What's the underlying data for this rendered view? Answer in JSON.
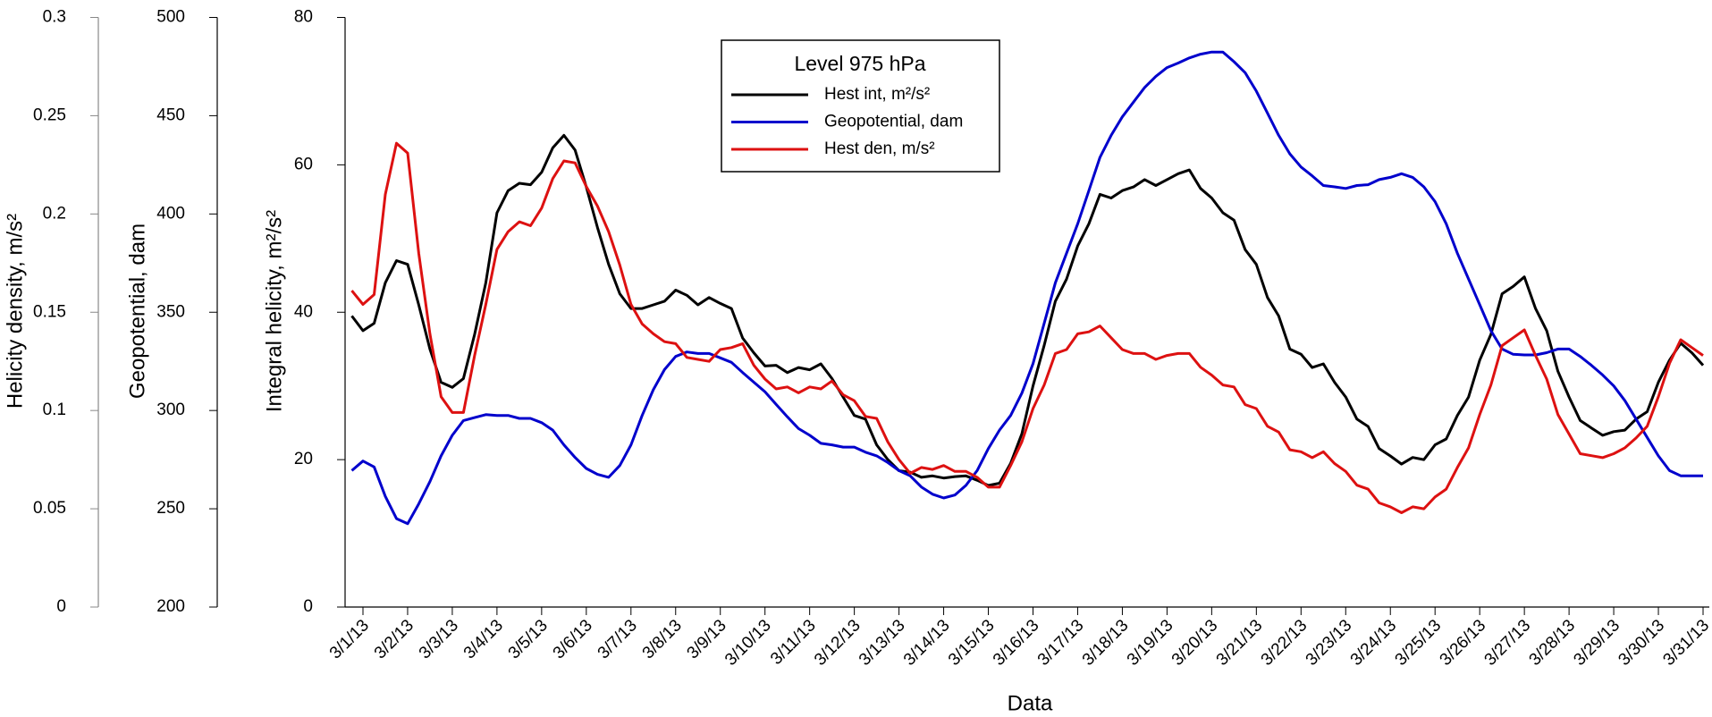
{
  "chart_data": {
    "type": "line",
    "legend_title": "Level 975 hPa",
    "xlabel": "Data",
    "ylabel": "Integral helicity, m²/s²",
    "y2label": "Geopotential, dam",
    "y3label": "Helicity density, m/s²",
    "xlim": [
      0.6,
      31.2
    ],
    "xticks": [
      {
        "value": 1,
        "label": "3/1/13"
      },
      {
        "value": 2,
        "label": "3/2/13"
      },
      {
        "value": 3,
        "label": "3/3/13"
      },
      {
        "value": 4,
        "label": "3/4/13"
      },
      {
        "value": 5,
        "label": "3/5/13"
      },
      {
        "value": 6,
        "label": "3/6/13"
      },
      {
        "value": 7,
        "label": "3/7/13"
      },
      {
        "value": 8,
        "label": "3/8/13"
      },
      {
        "value": 9,
        "label": "3/9/13"
      },
      {
        "value": 10,
        "label": "3/10/13"
      },
      {
        "value": 11,
        "label": "3/11/13"
      },
      {
        "value": 12,
        "label": "3/12/13"
      },
      {
        "value": 13,
        "label": "3/13/13"
      },
      {
        "value": 14,
        "label": "3/14/13"
      },
      {
        "value": 15,
        "label": "3/15/13"
      },
      {
        "value": 16,
        "label": "3/16/13"
      },
      {
        "value": 17,
        "label": "3/17/13"
      },
      {
        "value": 18,
        "label": "3/18/13"
      },
      {
        "value": 19,
        "label": "3/19/13"
      },
      {
        "value": 20,
        "label": "3/20/13"
      },
      {
        "value": 21,
        "label": "3/21/13"
      },
      {
        "value": 22,
        "label": "3/22/13"
      },
      {
        "value": 23,
        "label": "3/23/13"
      },
      {
        "value": 24,
        "label": "3/24/13"
      },
      {
        "value": 25,
        "label": "3/25/13"
      },
      {
        "value": 26,
        "label": "3/26/13"
      },
      {
        "value": 27,
        "label": "3/27/13"
      },
      {
        "value": 28,
        "label": "3/28/13"
      },
      {
        "value": 29,
        "label": "3/29/13"
      },
      {
        "value": 30,
        "label": "3/30/13"
      },
      {
        "value": 31,
        "label": "3/31/13"
      }
    ],
    "ylim": [
      0,
      80
    ],
    "yticks": [
      0,
      20,
      40,
      60,
      80
    ],
    "y2lim": [
      200,
      500
    ],
    "y2ticks": [
      200,
      250,
      300,
      350,
      400,
      450,
      500
    ],
    "y3lim": [
      0,
      0.3
    ],
    "y3ticks": [
      0,
      0.05,
      0.1,
      0.15,
      0.2,
      0.25,
      0.3
    ],
    "x": [
      0.75,
      1,
      1.25,
      1.5,
      1.75,
      2,
      2.25,
      2.5,
      2.75,
      3,
      3.25,
      3.5,
      3.75,
      4,
      4.25,
      4.5,
      4.75,
      5,
      5.25,
      5.5,
      5.75,
      6,
      6.25,
      6.5,
      6.75,
      7,
      7.25,
      7.5,
      7.75,
      8,
      8.25,
      8.5,
      8.75,
      9,
      9.25,
      9.5,
      9.75,
      10,
      10.25,
      10.5,
      10.75,
      11,
      11.25,
      11.5,
      11.75,
      12,
      12.25,
      12.5,
      12.75,
      13,
      13.25,
      13.5,
      13.75,
      14,
      14.25,
      14.5,
      14.75,
      15,
      15.25,
      15.5,
      15.75,
      16,
      16.25,
      16.5,
      16.75,
      17,
      17.25,
      17.5,
      17.75,
      18,
      18.25,
      18.5,
      18.75,
      19,
      19.25,
      19.5,
      19.75,
      20,
      20.25,
      20.5,
      20.75,
      21,
      21.25,
      21.5,
      21.75,
      22,
      22.25,
      22.5,
      22.75,
      23,
      23.25,
      23.5,
      23.75,
      24,
      24.25,
      24.5,
      24.75,
      25,
      25.25,
      25.5,
      25.75,
      26,
      26.25,
      26.5,
      26.75,
      27,
      27.25,
      27.5,
      27.75,
      28,
      28.25,
      28.5,
      28.75,
      29,
      29.25,
      29.5,
      29.75,
      30,
      30.25,
      30.5,
      30.75,
      31
    ],
    "series": [
      {
        "name": "Hest int, m²/s²",
        "color": "#000000",
        "axis": "y",
        "values": [
          39.5,
          37.5,
          38.5,
          44,
          47,
          46.5,
          41,
          35,
          30.5,
          29.8,
          31,
          37,
          44,
          53.5,
          56.5,
          57.5,
          57.3,
          59,
          62.3,
          64,
          62,
          57,
          51.5,
          46.5,
          42.5,
          40.5,
          40.5,
          41,
          41.5,
          43,
          42.3,
          41,
          42,
          41.2,
          40.5,
          36.5,
          34.5,
          32.7,
          32.8,
          31.8,
          32.5,
          32.2,
          33,
          31,
          28.5,
          26,
          25.5,
          22,
          20,
          18.5,
          18.3,
          17.6,
          17.8,
          17.5,
          17.7,
          17.8,
          17.2,
          16.5,
          16.8,
          19.5,
          23.5,
          30,
          35.5,
          41.5,
          44.5,
          49,
          52,
          56,
          55.5,
          56.5,
          57,
          58,
          57.2,
          58,
          58.8,
          59.3,
          56.8,
          55.5,
          53.5,
          52.5,
          48.5,
          46.5,
          42,
          39.5,
          35,
          34.3,
          32.5,
          33,
          30.5,
          28.5,
          25.5,
          24.5,
          21.5,
          20.5,
          19.4,
          20.3,
          20,
          22,
          22.8,
          26,
          28.5,
          33.5,
          37,
          42.5,
          43.5,
          44.8,
          40.5,
          37.5,
          32,
          28.5,
          25.3,
          24.3,
          23.3,
          23.8,
          24,
          25.5,
          26.5,
          30.5,
          33.5,
          35.8,
          34.5,
          32.8
        ]
      },
      {
        "name": "Geopotential, dam",
        "color": "#0000cc",
        "axis": "y2",
        "values": [
          269.4,
          274.3,
          271.3,
          256.3,
          245,
          242.4,
          252.5,
          263.8,
          276.9,
          287.4,
          294.9,
          296.4,
          297.9,
          297.5,
          297.5,
          296,
          296,
          293.8,
          290,
          282.5,
          276.1,
          270.5,
          267.5,
          266,
          272,
          282.5,
          297.5,
          310.6,
          320.8,
          327.5,
          329.8,
          329,
          329,
          326.8,
          324.5,
          319.3,
          314.4,
          309.5,
          303.1,
          296.8,
          290.8,
          287.4,
          283.3,
          282.5,
          281.4,
          281.4,
          278.8,
          276.9,
          273.5,
          269.4,
          266.8,
          261.1,
          257.4,
          255.5,
          257,
          261.9,
          269.4,
          280.6,
          290,
          297.5,
          308.8,
          323.8,
          344.4,
          365,
          380,
          395,
          411.9,
          428.8,
          440,
          449.4,
          456.9,
          464.4,
          470,
          474.5,
          476.8,
          479.4,
          481.3,
          482.4,
          482.4,
          477.5,
          471.9,
          462.5,
          451.3,
          440,
          430.6,
          423.9,
          419.4,
          414.5,
          413.8,
          413,
          414.5,
          414.9,
          417.5,
          418.6,
          420.5,
          418.6,
          413.8,
          406.3,
          395,
          380,
          366.9,
          353.8,
          340.6,
          331.3,
          328.6,
          328.3,
          328.3,
          329.4,
          331.3,
          331.3,
          327.5,
          323,
          318.1,
          312.5,
          305,
          295.6,
          286.3,
          276.9,
          269.4,
          266.8,
          266.8,
          266.8
        ]
      },
      {
        "name": "Hest den, m/s²",
        "color": "#dd1111",
        "axis": "y3",
        "values": [
          0.161,
          0.154,
          0.159,
          0.21,
          0.236,
          0.231,
          0.18,
          0.139,
          0.107,
          0.099,
          0.099,
          0.128,
          0.154,
          0.182,
          0.191,
          0.196,
          0.194,
          0.203,
          0.218,
          0.227,
          0.226,
          0.214,
          0.204,
          0.191,
          0.174,
          0.154,
          0.144,
          0.139,
          0.135,
          0.134,
          0.127,
          0.126,
          0.125,
          0.131,
          0.132,
          0.134,
          0.123,
          0.116,
          0.111,
          0.112,
          0.109,
          0.112,
          0.111,
          0.115,
          0.108,
          0.105,
          0.097,
          0.096,
          0.084,
          0.075,
          0.068,
          0.071,
          0.07,
          0.072,
          0.069,
          0.069,
          0.066,
          0.061,
          0.061,
          0.072,
          0.084,
          0.101,
          0.113,
          0.129,
          0.131,
          0.139,
          0.14,
          0.143,
          0.137,
          0.131,
          0.129,
          0.129,
          0.126,
          0.128,
          0.129,
          0.129,
          0.122,
          0.118,
          0.113,
          0.112,
          0.103,
          0.101,
          0.092,
          0.089,
          0.08,
          0.079,
          0.076,
          0.079,
          0.073,
          0.069,
          0.062,
          0.06,
          0.053,
          0.051,
          0.048,
          0.051,
          0.05,
          0.056,
          0.06,
          0.071,
          0.081,
          0.098,
          0.113,
          0.133,
          0.137,
          0.141,
          0.128,
          0.116,
          0.098,
          0.088,
          0.078,
          0.077,
          0.076,
          0.078,
          0.081,
          0.086,
          0.092,
          0.107,
          0.124,
          0.136,
          0.132,
          0.128
        ]
      }
    ]
  }
}
